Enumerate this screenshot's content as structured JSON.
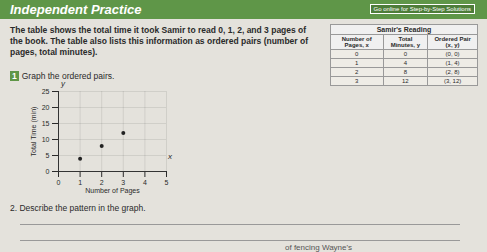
{
  "header": {
    "title": "Independent Practice",
    "link": "Go online for Step-by-Step Solutions"
  },
  "intro": "The table shows the total time it took Samir to read 0, 1, 2, and 3 pages of the book. The table also lists this information as ordered pairs (number of pages, total minutes).",
  "question1": {
    "number": "1",
    "text": "Graph the ordered pairs."
  },
  "table": {
    "title": "Samir's Reading",
    "columns": [
      "Number of Pages, x",
      "Total Minutes, y",
      "Ordered Pair (x, y)"
    ],
    "rows": [
      [
        "0",
        "0",
        "(0, 0)"
      ],
      [
        "1",
        "4",
        "(1, 4)"
      ],
      [
        "2",
        "8",
        "(2, 8)"
      ],
      [
        "3",
        "12",
        "(3, 12)"
      ]
    ]
  },
  "chart_data": {
    "type": "scatter",
    "x_label": "Number of Pages",
    "y_label": "Total Time (min)",
    "axis_letters": {
      "x": "x",
      "y": "y"
    },
    "x": [
      1,
      2,
      3
    ],
    "values": [
      4,
      8,
      12
    ],
    "color": "#222222",
    "xlim": [
      0,
      5
    ],
    "xticks": [
      0,
      1,
      2,
      3,
      4,
      5
    ],
    "ylim": [
      0,
      25
    ],
    "yticks": [
      0,
      5,
      10,
      15,
      20,
      25
    ],
    "grid": true
  },
  "question2": "2. Describe the pattern in the graph.",
  "fragment": "of fencing Wayne's"
}
